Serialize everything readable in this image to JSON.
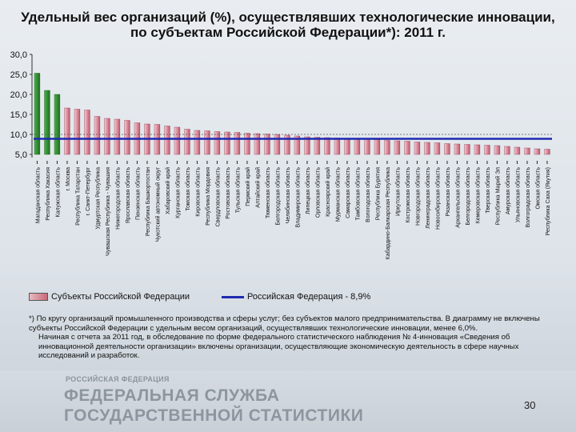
{
  "slide": {
    "title": "Удельный вес организаций (%), осуществлявших технологические инновации, по субъектам Российской Федерации*): 2011 г.",
    "page_number": "30"
  },
  "legend": {
    "bars_label": "Субъекты Российской Федерации",
    "line_label": "Российская Федерация - 8,9%"
  },
  "footnote": {
    "p1": "*) По кругу организаций промышленного производства и сферы услуг; без субъектов малого предпринимательства. В диаграмму не включены субъекты Российской Федерации с удельным весом организаций, осуществлявших технологические инновации, менее 6,0%.",
    "p2": "Начиная с отчета за 2011 год, в обследование по форме федерального статистического наблюдения № 4-инновация «Сведения об инновационной деятельности организации» включены организации, осуществляющие экономическую деятельность в сфере научных исследований и разработок."
  },
  "footer": {
    "org_small": "РОССИЙСКАЯ ФЕДЕРАЦИЯ",
    "org_line1": "ФЕДЕРАЛЬНАЯ СЛУЖБА",
    "org_line2": "ГОСУДАРСТВЕННОЙ СТАТИСТИКИ"
  },
  "colors": {
    "top_bars": "#2f8a2f",
    "bars": "#c96a7b",
    "reference_line": "#1f2ab0"
  },
  "chart_data": {
    "type": "bar",
    "title": "Удельный вес организаций (%), осуществлявших технологические инновации, по субъектам Российской Федерации*): 2011 г.",
    "ylim": [
      5,
      30
    ],
    "yticks": [
      "5,0",
      "10,0",
      "15,0",
      "20,0",
      "25,0",
      "30,0"
    ],
    "ytick_values": [
      5,
      10,
      15,
      20,
      25,
      30
    ],
    "grid": false,
    "legend_position": "bottom",
    "reference_line": {
      "name": "Российская Федерация - 8,9%",
      "value": 8.9
    },
    "highlight_count": 3,
    "categories": [
      "Магаданская область",
      "Республика Хакасия",
      "Калужская область",
      "г. Москва",
      "Республика Татарстан",
      "г. Санкт-Петербург",
      "Удмуртская Республика",
      "Чувашская Республика - Чувашия",
      "Нижегородская область",
      "Ярославская область",
      "Пензенская область",
      "Республика Башкортостан",
      "Чукотский автономный округ",
      "Хабаровский край",
      "Курганская область",
      "Томская область",
      "Кировская область",
      "Республика Мордовия",
      "Свердловская область",
      "Ростовская область",
      "Тульская область",
      "Пермский край",
      "Алтайский край",
      "Тюменская область",
      "Белгородская область",
      "Челябинская область",
      "Владимирская область",
      "Липецкая область",
      "Орловская область",
      "Красноярский край",
      "Мурманская область",
      "Самарская область",
      "Тамбовская область",
      "Вологодская область",
      "Республика Бурятия",
      "Кабардино-Балкарская Республика",
      "Иркутская область",
      "Костромская область",
      "Новгородская область",
      "Ленинградская область",
      "Новосибирская область",
      "Рязанская область",
      "Архангельская область",
      "Белгородская область",
      "Кемеровская область",
      "Тверская область",
      "Республика Марий Эл",
      "Амурская область",
      "Ульяновская область",
      "Волгоградская область",
      "Омская область",
      "Республика Саха (Якутия)"
    ],
    "values": [
      25.3,
      21.0,
      20.0,
      16.6,
      16.3,
      16.1,
      14.5,
      14.0,
      13.8,
      13.5,
      12.9,
      12.6,
      12.5,
      12.1,
      11.8,
      11.3,
      11.0,
      10.9,
      10.7,
      10.6,
      10.5,
      10.3,
      10.2,
      10.1,
      10.0,
      9.8,
      9.6,
      9.4,
      9.3,
      9.2,
      9.1,
      9.0,
      8.9,
      8.8,
      8.7,
      8.5,
      8.4,
      8.3,
      8.1,
      8.0,
      7.9,
      7.7,
      7.6,
      7.5,
      7.4,
      7.3,
      7.2,
      7.0,
      6.8,
      6.6,
      6.4,
      6.3
    ]
  }
}
